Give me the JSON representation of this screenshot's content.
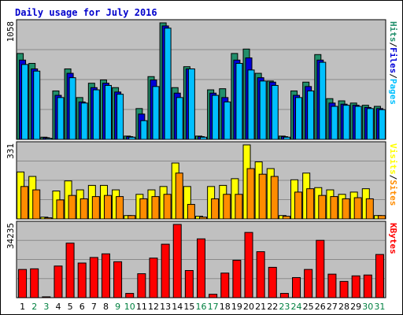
{
  "chart_data": {
    "type": "bar",
    "title": "Daily usage for July 2016",
    "days": [
      "1",
      "2",
      "3",
      "4",
      "5",
      "6",
      "7",
      "8",
      "9",
      "10",
      "11",
      "12",
      "13",
      "14",
      "15",
      "16",
      "17",
      "18",
      "19",
      "20",
      "21",
      "22",
      "23",
      "24",
      "25",
      "26",
      "27",
      "28",
      "29",
      "30",
      "31"
    ],
    "weekend_days": [
      "2",
      "3",
      "9",
      "10",
      "16",
      "17",
      "23",
      "24",
      "30",
      "31"
    ],
    "colors": {
      "title": "#0000cc",
      "background": "#ffffff",
      "panel": "#c0c0c0",
      "gridline": "#8a8a8a",
      "axis_text_weekday": "#000000",
      "axis_text_weekend": "#008040",
      "hits": "#218f6b",
      "files": "#0000d8",
      "pages": "#00c0ff",
      "visits": "#ffff00",
      "sites": "#ff8c00",
      "kbytes": "#ff0000"
    },
    "panels": [
      {
        "name": "requests",
        "max_label": "1058",
        "ymax": 1058,
        "legend": [
          {
            "label": "Hits",
            "color": "#218f6b"
          },
          {
            "label": "/",
            "color": "#000000"
          },
          {
            "label": "Files",
            "color": "#0000d8"
          },
          {
            "label": "/",
            "color": "#000000"
          },
          {
            "label": "Pages",
            "color": "#00c0ff"
          }
        ],
        "series": [
          {
            "name": "Hits",
            "color": "#218f6b",
            "values": [
              780,
              690,
              20,
              440,
              640,
              380,
              510,
              540,
              470,
              30,
              280,
              570,
              1058,
              470,
              660,
              30,
              450,
              460,
              780,
              820,
              600,
              530,
              30,
              440,
              520,
              770,
              370,
              350,
              330,
              310,
              300
            ]
          },
          {
            "name": "Files",
            "color": "#0000d8",
            "values": [
              720,
              640,
              15,
              400,
              600,
              340,
              470,
              510,
              430,
              25,
              230,
              540,
              1030,
              420,
              640,
              25,
              420,
              380,
              720,
              740,
              560,
              520,
              25,
              400,
              480,
              720,
              330,
              320,
              310,
              290,
              280
            ]
          },
          {
            "name": "Pages",
            "color": "#00c0ff",
            "values": [
              680,
              620,
              10,
              380,
              560,
              330,
              450,
              490,
              410,
              20,
              170,
              480,
              1010,
              380,
              640,
              20,
              400,
              340,
              690,
              630,
              530,
              490,
              20,
              380,
              440,
              700,
              300,
              310,
              300,
              280,
              270
            ]
          }
        ]
      },
      {
        "name": "visitors",
        "max_label": "331",
        "ymax": 331,
        "legend": [
          {
            "label": "Visits",
            "color": "#ffff00"
          },
          {
            "label": "/",
            "color": "#000000"
          },
          {
            "label": "Sites",
            "color": "#ff8c00"
          }
        ],
        "series": [
          {
            "name": "Visits",
            "color": "#ffff00",
            "values": [
              210,
              190,
              8,
              125,
              170,
              130,
              150,
              150,
              130,
              15,
              110,
              130,
              145,
              250,
              145,
              12,
              145,
              150,
              180,
              331,
              255,
              225,
              15,
              175,
              205,
              140,
              130,
              110,
              120,
              135,
              15
            ]
          },
          {
            "name": "Sites",
            "color": "#ff8c00",
            "values": [
              145,
              130,
              5,
              85,
              105,
              90,
              100,
              105,
              100,
              15,
              90,
              100,
              110,
              205,
              65,
              8,
              90,
              110,
              110,
              225,
              200,
              190,
              12,
              120,
              135,
              105,
              100,
              90,
              95,
              90,
              15
            ]
          }
        ]
      },
      {
        "name": "kbytes",
        "max_label": "34235",
        "ymax": 34235,
        "legend": [
          {
            "label": "KBytes",
            "color": "#ff0000"
          }
        ],
        "series": [
          {
            "name": "KBytes",
            "color": "#ff0000",
            "values": [
              13200,
              13500,
              400,
              14800,
              25500,
              16200,
              18800,
              20500,
              16800,
              2000,
              11200,
              18500,
              25000,
              34235,
              12700,
              27500,
              1600,
              11500,
              17500,
              30500,
              21500,
              14200,
              2000,
              9400,
              13200,
              26800,
              11000,
              7600,
              10200,
              10600,
              20200
            ]
          }
        ]
      }
    ]
  }
}
